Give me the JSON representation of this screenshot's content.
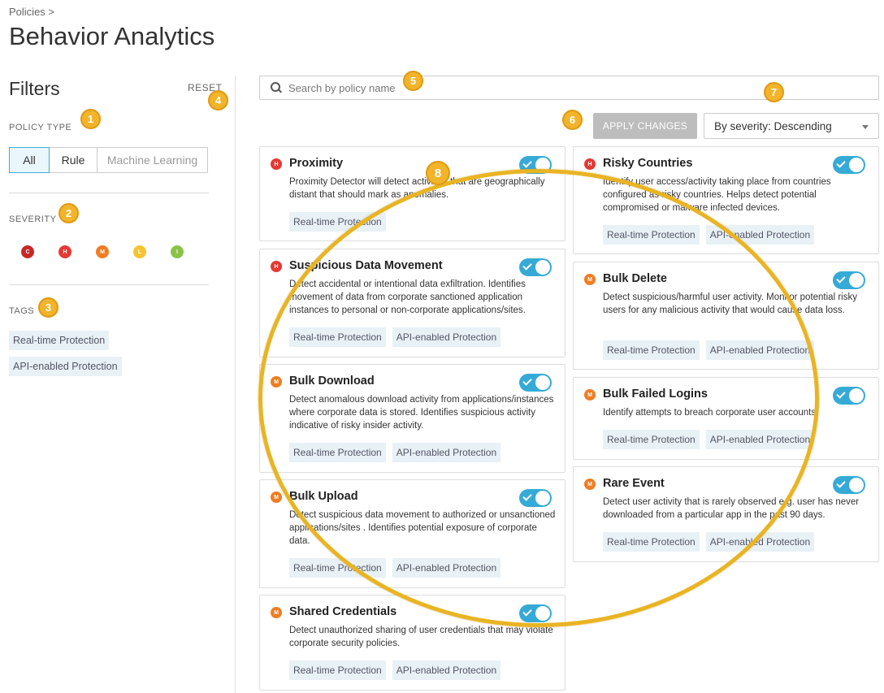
{
  "breadcrumb": "Policies >",
  "page_title": "Behavior Analytics",
  "filters": {
    "title": "Filters",
    "reset_label": "RESET",
    "policy_type_label": "POLICY TYPE",
    "policy_types": [
      "All",
      "Rule",
      "Machine Learning"
    ],
    "selected_policy_type": "All",
    "severity_label": "SEVERITY",
    "severities": [
      {
        "code": "C",
        "color": "#c62828"
      },
      {
        "code": "H",
        "color": "#e53935"
      },
      {
        "code": "M",
        "color": "#ef7d22"
      },
      {
        "code": "L",
        "color": "#f4c430"
      },
      {
        "code": "I",
        "color": "#8bc34a"
      }
    ],
    "tags_label": "TAGS",
    "tags": [
      "Real-time Protection",
      "API-enabled Protection"
    ]
  },
  "toolbar": {
    "search_placeholder": "Search by policy name",
    "apply_label": "APPLY CHANGES",
    "sort_value": "By severity: Descending"
  },
  "callouts": [
    "1",
    "2",
    "3",
    "4",
    "5",
    "6",
    "7",
    "8"
  ],
  "colors": {
    "accent": "#36aad6",
    "high": "#e53935",
    "medium": "#ef7d22",
    "callout": "#f2b42a"
  },
  "policies_left": [
    {
      "severity": "H",
      "title": "Proximity",
      "description": "Proximity Detector will detect activities that are geographically distant that should mark as anomalies.",
      "tags": [
        "Real-time Protection"
      ],
      "enabled": true
    },
    {
      "severity": "H",
      "title": "Suspicious Data Movement",
      "description": "Detect accidental or intentional data exfiltration. Identifies movement of data from corporate sanctioned application instances to personal or non-corporate applications/sites.",
      "tags": [
        "Real-time Protection",
        "API-enabled Protection"
      ],
      "enabled": true
    },
    {
      "severity": "M",
      "title": "Bulk Download",
      "description": "Detect anomalous download activity from applications/instances where corporate data is stored. Identifies suspicious activity indicative of risky insider activity.",
      "tags": [
        "Real-time Protection",
        "API-enabled Protection"
      ],
      "enabled": true
    },
    {
      "severity": "M",
      "title": "Bulk Upload",
      "description": "Detect suspicious data movement to authorized or unsanctioned applications/sites . Identifies potential exposure of corporate data.",
      "tags": [
        "Real-time Protection",
        "API-enabled Protection"
      ],
      "enabled": true
    },
    {
      "severity": "M",
      "title": "Shared Credentials",
      "description": "Detect unauthorized sharing of user credentials that may violate corporate security policies.",
      "tags": [
        "Real-time Protection",
        "API-enabled Protection"
      ],
      "enabled": true
    }
  ],
  "policies_right": [
    {
      "severity": "H",
      "title": "Risky Countries",
      "description": "Identify user access/activity taking place from countries configured as risky countries. Helps detect potential compromised or malware infected devices.",
      "tags": [
        "Real-time Protection",
        "API-enabled Protection"
      ],
      "enabled": true
    },
    {
      "severity": "M",
      "title": "Bulk Delete",
      "description": "Detect suspicious/harmful user activity. Monitor potential risky users for any malicious activity that would cause data loss.",
      "tags": [
        "Real-time Protection",
        "API-enabled Protection"
      ],
      "enabled": true
    },
    {
      "severity": "M",
      "title": "Bulk Failed Logins",
      "description": "Identify attempts to breach corporate user accounts.",
      "tags": [
        "Real-time Protection",
        "API-enabled Protection"
      ],
      "enabled": true
    },
    {
      "severity": "M",
      "title": "Rare Event",
      "description": "Detect user activity that is rarely observed e.g. user has never downloaded from a particular app in the past 90 days.",
      "tags": [
        "Real-time Protection",
        "API-enabled Protection"
      ],
      "enabled": true
    }
  ]
}
